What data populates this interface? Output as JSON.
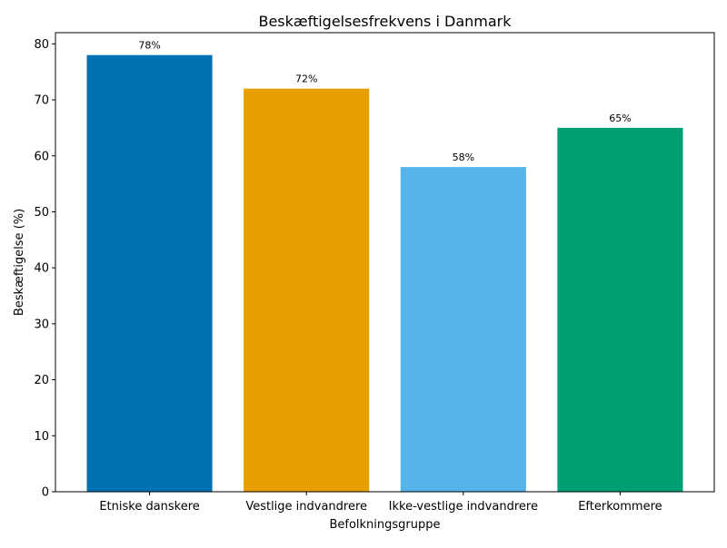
{
  "chart_data": {
    "type": "bar",
    "title": "Beskæftigelsesfrekvens i Danmark",
    "xlabel": "Befolkningsgruppe",
    "ylabel": "Beskæftigelse (%)",
    "categories": [
      "Etniske danskere",
      "Vestlige indvandrere",
      "Ikke-vestlige indvandrere",
      "Efterkommere"
    ],
    "values": [
      78,
      72,
      58,
      65
    ],
    "value_labels": [
      "78%",
      "72%",
      "58%",
      "65%"
    ],
    "colors": [
      "#0072b2",
      "#e69f00",
      "#56b4e9",
      "#009e73"
    ],
    "ylim": [
      0,
      82
    ],
    "yticks": [
      0,
      10,
      20,
      30,
      40,
      50,
      60,
      70,
      80
    ],
    "grid": false,
    "legend": "none"
  }
}
